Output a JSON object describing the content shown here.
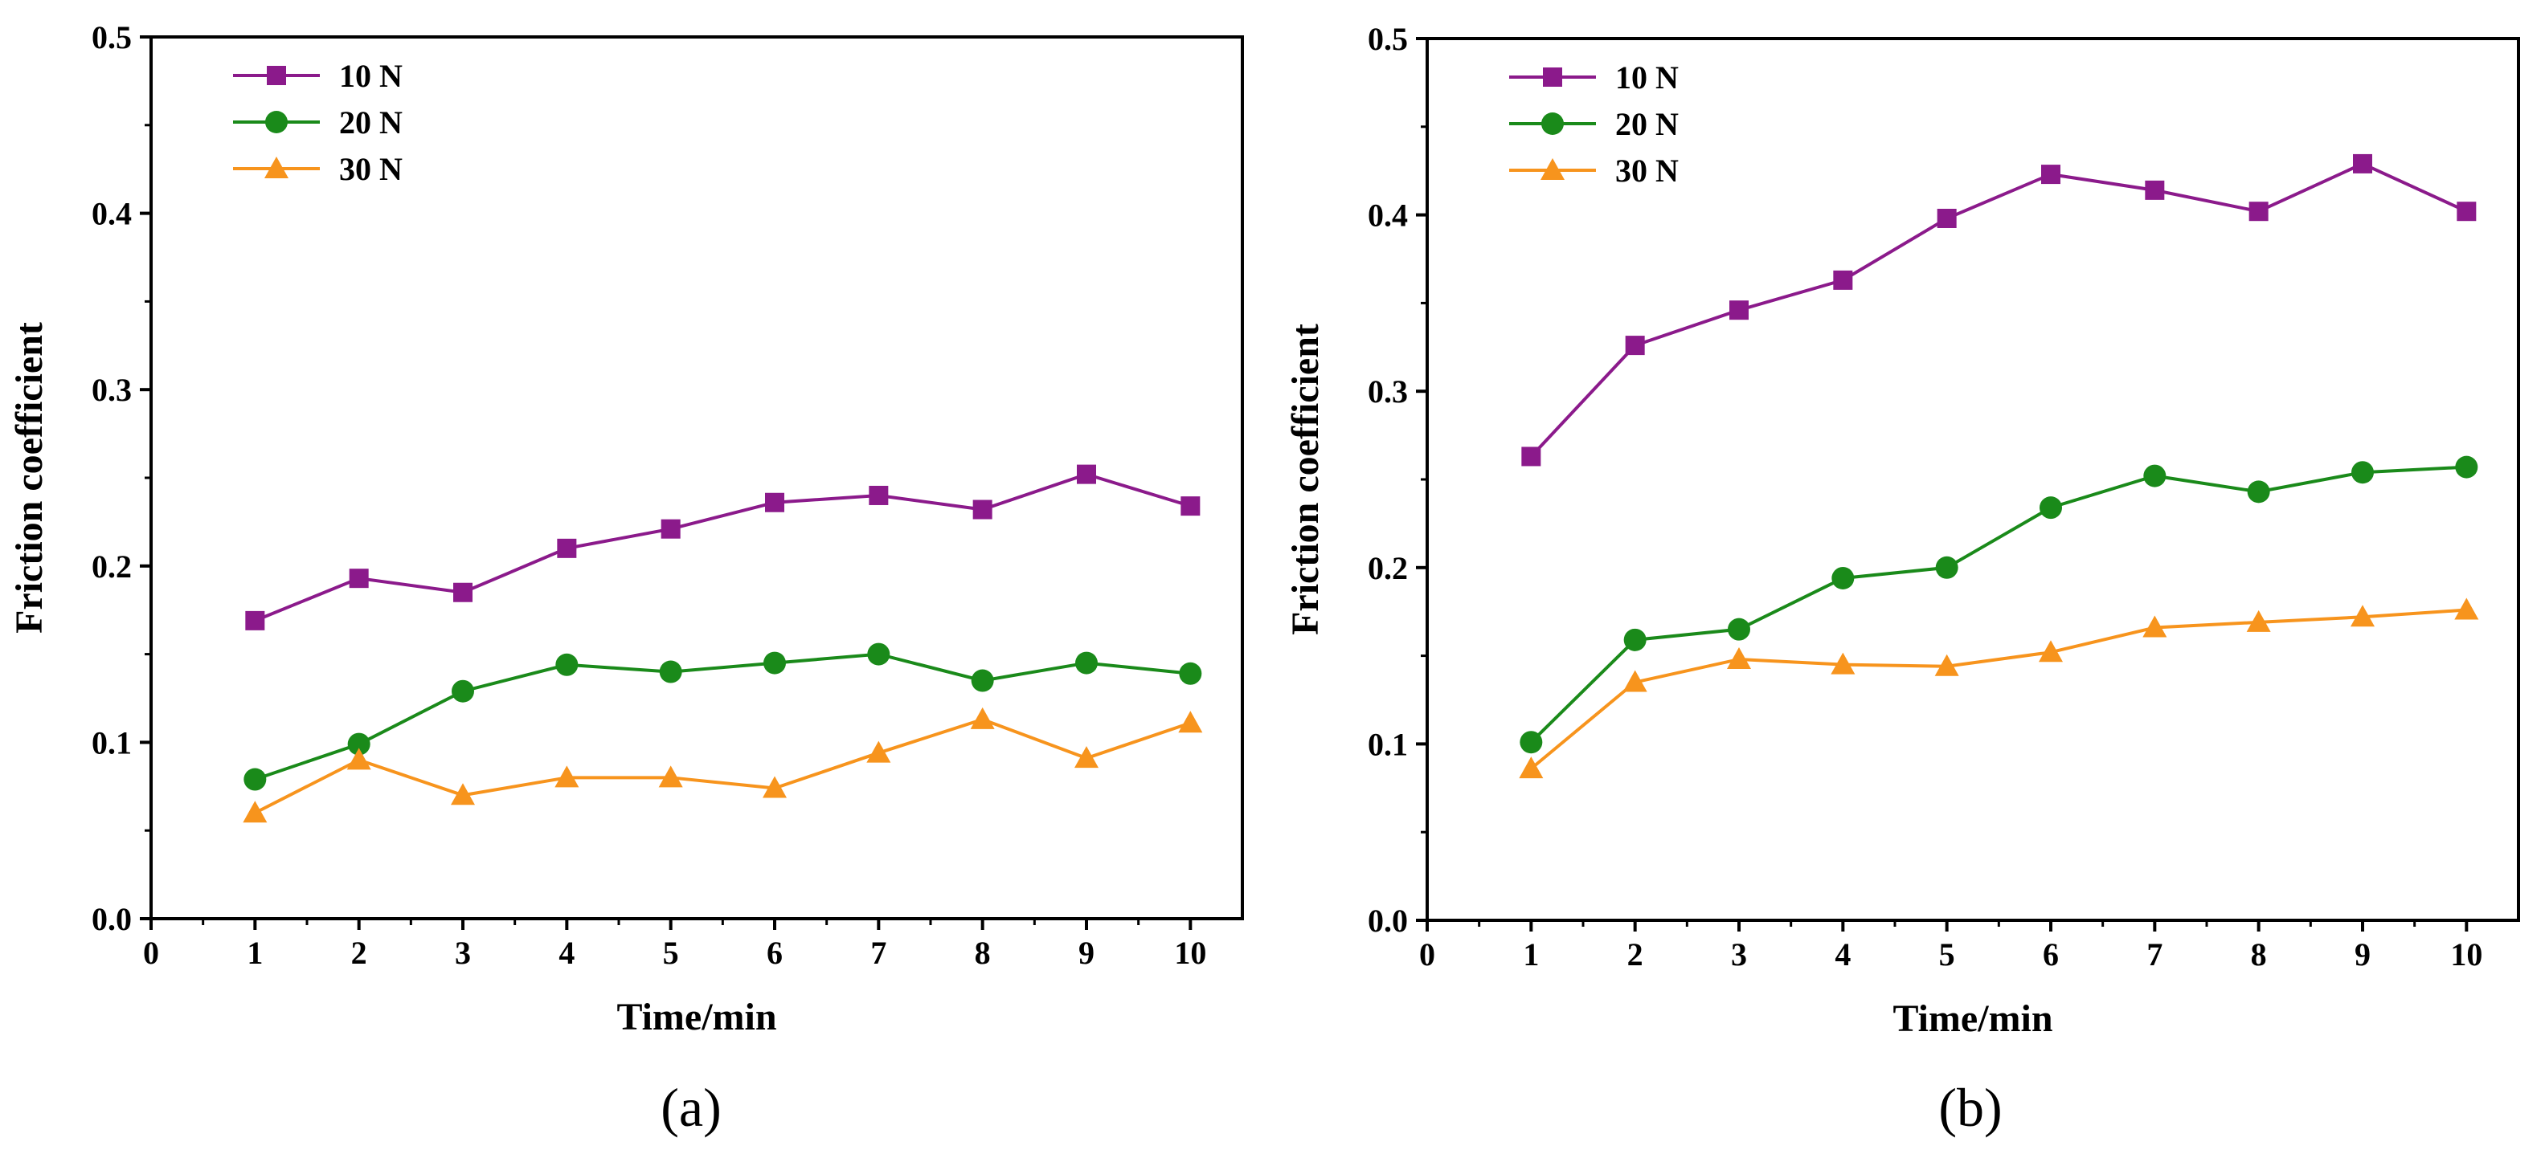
{
  "chart_data": [
    {
      "type": "line",
      "panel_label": "(a)",
      "xlabel": "Time/min",
      "ylabel": "Friction coefficient",
      "xlim": [
        0,
        10.5
      ],
      "ylim": [
        0,
        0.5
      ],
      "xticks": [
        0,
        1,
        2,
        3,
        4,
        5,
        6,
        7,
        8,
        9,
        10
      ],
      "xtick_labels": [
        "0",
        "1",
        "2",
        "3",
        "4",
        "5",
        "6",
        "7",
        "8",
        "9",
        "10"
      ],
      "yticks": [
        0,
        0.1,
        0.2,
        0.3,
        0.4,
        0.5
      ],
      "ytick_labels": [
        "0.0",
        "0.1",
        "0.2",
        "0.3",
        "0.4",
        "0.5"
      ],
      "grid": false,
      "legend_position": "top-left",
      "x": [
        1,
        2,
        3,
        4,
        5,
        6,
        7,
        8,
        9,
        10
      ],
      "series": [
        {
          "name": "10 N",
          "marker": "square",
          "color": "#8b1a8b",
          "values": [
            0.169,
            0.193,
            0.185,
            0.21,
            0.221,
            0.236,
            0.24,
            0.232,
            0.252,
            0.234
          ]
        },
        {
          "name": "20 N",
          "marker": "circle",
          "color": "#1a8a1a",
          "values": [
            0.079,
            0.099,
            0.129,
            0.144,
            0.14,
            0.145,
            0.15,
            0.135,
            0.145,
            0.139
          ]
        },
        {
          "name": "30 N",
          "marker": "triangle",
          "color": "#f7941d",
          "values": [
            0.06,
            0.09,
            0.07,
            0.08,
            0.08,
            0.074,
            0.094,
            0.113,
            0.091,
            0.111
          ]
        }
      ]
    },
    {
      "type": "line",
      "panel_label": "(b)",
      "xlabel": "Time/min",
      "ylabel": "Friction coefficient",
      "xlim": [
        0,
        10.5
      ],
      "ylim": [
        0,
        0.5
      ],
      "xticks": [
        0,
        1,
        2,
        3,
        4,
        5,
        6,
        7,
        8,
        9,
        10
      ],
      "xtick_labels": [
        "0",
        "1",
        "2",
        "3",
        "4",
        "5",
        "6",
        "7",
        "8",
        "9",
        "10"
      ],
      "yticks": [
        0,
        0.1,
        0.2,
        0.3,
        0.4,
        0.5
      ],
      "ytick_labels": [
        "0.0",
        "0.1",
        "0.2",
        "0.3",
        "0.4",
        "0.5"
      ],
      "grid": false,
      "legend_position": "top-left",
      "x": [
        1,
        2,
        3,
        4,
        5,
        6,
        7,
        8,
        9,
        10
      ],
      "series": [
        {
          "name": "10 N",
          "marker": "square",
          "color": "#8b1a8b",
          "values": [
            0.263,
            0.326,
            0.346,
            0.363,
            0.398,
            0.423,
            0.414,
            0.402,
            0.429,
            0.402
          ]
        },
        {
          "name": "20 N",
          "marker": "circle",
          "color": "#1a8a1a",
          "values": [
            0.101,
            0.159,
            0.165,
            0.194,
            0.2,
            0.234,
            0.252,
            0.243,
            0.254,
            0.257
          ]
        },
        {
          "name": "30 N",
          "marker": "triangle",
          "color": "#f7941d",
          "values": [
            0.086,
            0.135,
            0.148,
            0.145,
            0.144,
            0.152,
            0.166,
            0.169,
            0.172,
            0.176
          ]
        }
      ]
    }
  ]
}
